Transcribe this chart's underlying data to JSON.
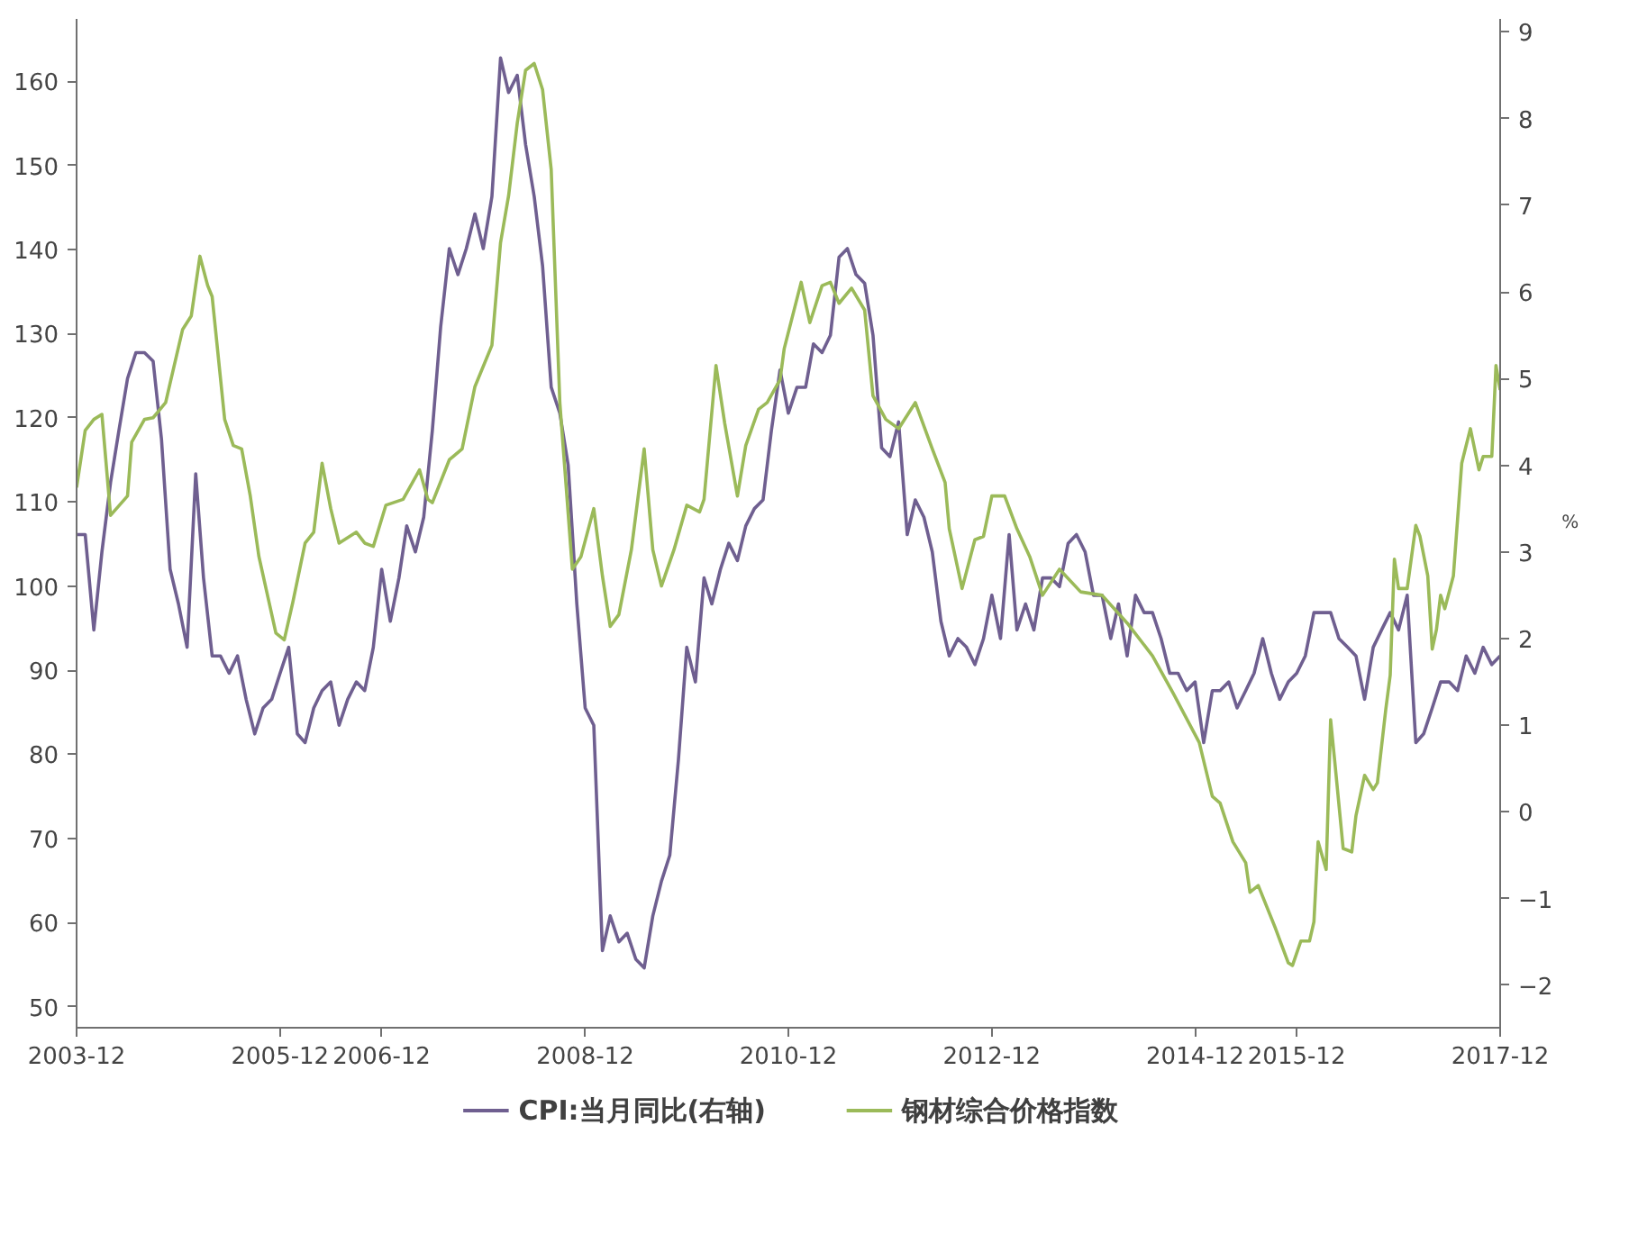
{
  "chart_data": {
    "type": "line",
    "xlim": [
      "2003-12",
      "2017-12"
    ],
    "xticks": [
      "2003-12",
      "2005-12",
      "2006-12",
      "2008-12",
      "2010-12",
      "2012-12",
      "2014-12",
      "2015-12",
      "2017-12"
    ],
    "ylim": [
      47.5,
      167.4
    ],
    "yticks": [
      50,
      60,
      70,
      80,
      90,
      100,
      110,
      120,
      130,
      140,
      150,
      160
    ],
    "y2lim": [
      -2.49,
      9.15
    ],
    "y2ticks": [
      -2,
      -1,
      0,
      1,
      2,
      3,
      4,
      5,
      6,
      7,
      8,
      9
    ],
    "y2label": "%",
    "grid": false,
    "legend": "bottom",
    "line_style": "solid",
    "marker": "none",
    "series": [
      {
        "name": "CPI:当月同比(右轴)",
        "color": "#6f5f90",
        "axis": "y2",
        "x": [
          "2003-12",
          "2004-01",
          "2004-02",
          "2004-03",
          "2004-04",
          "2004-05",
          "2004-06",
          "2004-07",
          "2004-08",
          "2004-09",
          "2004-10",
          "2004-11",
          "2004-12",
          "2005-01",
          "2005-02",
          "2005-03",
          "2005-04",
          "2005-05",
          "2005-06",
          "2005-07",
          "2005-08",
          "2005-09",
          "2005-10",
          "2005-11",
          "2005-12",
          "2006-01",
          "2006-02",
          "2006-03",
          "2006-04",
          "2006-05",
          "2006-06",
          "2006-07",
          "2006-08",
          "2006-09",
          "2006-10",
          "2006-11",
          "2006-12",
          "2007-01",
          "2007-02",
          "2007-03",
          "2007-04",
          "2007-05",
          "2007-06",
          "2007-07",
          "2007-08",
          "2007-09",
          "2007-10",
          "2007-11",
          "2007-12",
          "2008-01",
          "2008-02",
          "2008-03",
          "2008-04",
          "2008-05",
          "2008-06",
          "2008-07",
          "2008-08",
          "2008-09",
          "2008-10",
          "2008-11",
          "2008-12",
          "2009-01",
          "2009-02",
          "2009-03",
          "2009-04",
          "2009-05",
          "2009-06",
          "2009-07",
          "2009-08",
          "2009-09",
          "2009-10",
          "2009-11",
          "2009-12",
          "2010-01",
          "2010-02",
          "2010-03",
          "2010-04",
          "2010-05",
          "2010-06",
          "2010-07",
          "2010-08",
          "2010-09",
          "2010-10",
          "2010-11",
          "2010-12",
          "2011-01",
          "2011-02",
          "2011-03",
          "2011-04",
          "2011-05",
          "2011-06",
          "2011-07",
          "2011-08",
          "2011-09",
          "2011-10",
          "2011-11",
          "2011-12",
          "2012-01",
          "2012-02",
          "2012-03",
          "2012-04",
          "2012-05",
          "2012-06",
          "2012-07",
          "2012-08",
          "2012-09",
          "2012-10",
          "2012-11",
          "2012-12",
          "2013-01",
          "2013-02",
          "2013-03",
          "2013-04",
          "2013-05",
          "2013-06",
          "2013-07",
          "2013-08",
          "2013-09",
          "2013-10",
          "2013-11",
          "2013-12",
          "2014-01",
          "2014-02",
          "2014-03",
          "2014-04",
          "2014-05",
          "2014-06",
          "2014-07",
          "2014-08",
          "2014-09",
          "2014-10",
          "2014-11",
          "2014-12",
          "2015-01",
          "2015-02",
          "2015-03",
          "2015-04",
          "2015-05",
          "2015-06",
          "2015-07",
          "2015-08",
          "2015-09",
          "2015-10",
          "2015-11",
          "2015-12",
          "2016-01",
          "2016-02",
          "2016-03",
          "2016-04",
          "2016-05",
          "2016-06",
          "2016-07",
          "2016-08",
          "2016-09",
          "2016-10",
          "2016-11",
          "2016-12",
          "2017-01",
          "2017-02",
          "2017-03",
          "2017-04",
          "2017-05",
          "2017-06",
          "2017-07",
          "2017-08",
          "2017-09",
          "2017-10",
          "2017-11",
          "2017-12"
        ],
        "values": [
          3.2,
          3.2,
          2.1,
          3.0,
          3.8,
          4.4,
          5.0,
          5.3,
          5.3,
          5.2,
          4.3,
          2.8,
          2.4,
          1.9,
          3.9,
          2.7,
          1.8,
          1.8,
          1.6,
          1.8,
          1.3,
          0.9,
          1.2,
          1.3,
          1.6,
          1.9,
          0.9,
          0.8,
          1.2,
          1.4,
          1.5,
          1.0,
          1.3,
          1.5,
          1.4,
          1.9,
          2.8,
          2.2,
          2.7,
          3.3,
          3.0,
          3.4,
          4.4,
          5.6,
          6.5,
          6.2,
          6.5,
          6.9,
          6.5,
          7.1,
          8.7,
          8.3,
          8.5,
          7.7,
          7.1,
          6.3,
          4.9,
          4.6,
          4.0,
          2.4,
          1.2,
          1.0,
          -1.6,
          -1.2,
          -1.5,
          -1.4,
          -1.7,
          -1.8,
          -1.2,
          -0.8,
          -0.5,
          0.6,
          1.9,
          1.5,
          2.7,
          2.4,
          2.8,
          3.1,
          2.9,
          3.3,
          3.5,
          3.6,
          4.4,
          5.1,
          4.6,
          4.9,
          4.9,
          5.4,
          5.3,
          5.5,
          6.4,
          6.5,
          6.2,
          6.1,
          5.5,
          4.2,
          4.1,
          4.5,
          3.2,
          3.6,
          3.4,
          3.0,
          2.2,
          1.8,
          2.0,
          1.9,
          1.7,
          2.0,
          2.5,
          2.0,
          3.2,
          2.1,
          2.4,
          2.1,
          2.7,
          2.7,
          2.6,
          3.1,
          3.2,
          3.0,
          2.5,
          2.5,
          2.0,
          2.4,
          1.8,
          2.5,
          2.3,
          2.3,
          2.0,
          1.6,
          1.6,
          1.4,
          1.5,
          0.8,
          1.4,
          1.4,
          1.5,
          1.2,
          1.4,
          1.6,
          2.0,
          1.6,
          1.3,
          1.5,
          1.6,
          1.8,
          2.3,
          2.3,
          2.3,
          2.0,
          1.9,
          1.8,
          1.3,
          1.9,
          2.1,
          2.3,
          2.1,
          2.5,
          0.8,
          0.9,
          1.2,
          1.5,
          1.5,
          1.4,
          1.8,
          1.6,
          1.9,
          1.7,
          1.8
        ]
      },
      {
        "name": "钢材综合价格指数",
        "color": "#9bba59",
        "x": [
          "2003-12-01",
          "2004-01-01",
          "2004-02-01",
          "2004-03-01",
          "2004-04-01",
          "2004-06-01",
          "2004-06-16",
          "2004-08-01",
          "2004-09-01",
          "2004-10-16",
          "2004-11-01",
          "2004-12-16",
          "2005-01-16",
          "2005-02-16",
          "2005-03-16",
          "2005-04-01",
          "2005-05-16",
          "2005-06-16",
          "2005-07-16",
          "2005-08-16",
          "2005-09-16",
          "2005-11-16",
          "2005-12-16",
          "2006-01-16",
          "2006-03-01",
          "2006-04-01",
          "2006-05-01",
          "2006-06-01",
          "2006-07-01",
          "2006-09-01",
          "2006-10-01",
          "2006-11-01",
          "2006-12-16",
          "2007-02-16",
          "2007-04-16",
          "2007-05-16",
          "2007-06-01",
          "2007-08-01",
          "2007-09-16",
          "2007-11-01",
          "2008-01-01",
          "2008-02-01",
          "2008-03-01",
          "2008-04-01",
          "2008-05-01",
          "2008-06-01",
          "2008-07-01",
          "2008-08-01",
          "2008-09-01",
          "2008-10-16",
          "2008-11-16",
          "2009-01-01",
          "2009-02-01",
          "2009-03-01",
          "2009-04-01",
          "2009-05-16",
          "2009-07-01",
          "2009-08-01",
          "2009-09-01",
          "2009-10-16",
          "2009-12-01",
          "2010-01-16",
          "2010-02-01",
          "2010-03-16",
          "2010-04-16",
          "2010-06-01",
          "2010-07-01",
          "2010-08-16",
          "2010-09-16",
          "2010-11-01",
          "2010-11-16",
          "2011-01-16",
          "2011-02-16",
          "2011-04-01",
          "2011-05-01",
          "2011-06-01",
          "2011-07-16",
          "2011-09-01",
          "2011-10-01",
          "2011-11-16",
          "2012-01-01",
          "2012-03-01",
          "2012-05-01",
          "2012-06-16",
          "2012-07-01",
          "2012-08-16",
          "2012-10-01",
          "2012-11-01",
          "2012-12-01",
          "2013-01-16",
          "2013-03-01",
          "2013-04-16",
          "2013-06-01",
          "2013-08-01",
          "2013-10-16",
          "2014-01-01",
          "2014-04-01",
          "2014-07-01",
          "2014-09-16",
          "2014-12-16",
          "2015-02-01",
          "2015-03-01",
          "2015-04-16",
          "2015-06-01",
          "2015-06-16",
          "2015-07-16",
          "2015-09-16",
          "2015-11-01",
          "2015-11-16",
          "2015-12-16",
          "2016-01-16",
          "2016-02-01",
          "2016-02-16",
          "2016-03-16",
          "2016-04-01",
          "2016-04-16",
          "2016-05-16",
          "2016-06-16",
          "2016-07-01",
          "2016-08-01",
          "2016-09-01",
          "2016-09-16",
          "2016-10-16",
          "2016-11-01",
          "2016-11-16",
          "2016-12-01",
          "2017-01-01",
          "2017-02-01",
          "2017-02-16",
          "2017-03-16",
          "2017-04-01",
          "2017-04-16",
          "2017-05-01",
          "2017-05-16",
          "2017-06-16",
          "2017-07-16",
          "2017-08-16",
          "2017-09-16",
          "2017-10-01",
          "2017-11-01",
          "2017-11-16",
          "2017-12-01"
        ],
        "values": [
          111.7,
          118.5,
          119.8,
          120.4,
          108.4,
          110.7,
          117.1,
          119.8,
          120.0,
          121.8,
          124.1,
          130.5,
          132.1,
          139.2,
          135.7,
          134.4,
          119.8,
          116.7,
          116.3,
          110.7,
          103.5,
          94.4,
          93.6,
          98.1,
          105.1,
          106.4,
          114.6,
          109.2,
          105.1,
          106.4,
          105.1,
          104.7,
          109.6,
          110.3,
          113.8,
          110.3,
          109.9,
          115.0,
          116.3,
          123.7,
          128.6,
          140.8,
          146.4,
          155.0,
          161.3,
          162.1,
          159.0,
          149.5,
          121.8,
          102.0,
          103.5,
          109.2,
          101.2,
          95.2,
          96.6,
          104.3,
          116.3,
          104.3,
          100.0,
          104.3,
          109.6,
          108.8,
          110.3,
          126.2,
          119.4,
          110.7,
          116.7,
          121.0,
          121.8,
          124.5,
          128.2,
          136.1,
          131.3,
          135.7,
          136.1,
          133.6,
          135.4,
          132.8,
          122.6,
          119.8,
          118.7,
          121.8,
          116.3,
          112.3,
          106.8,
          99.7,
          105.5,
          105.9,
          110.7,
          110.7,
          106.8,
          103.5,
          98.9,
          102.0,
          99.3,
          98.9,
          95.6,
          91.7,
          87.1,
          81.4,
          75.0,
          74.2,
          69.6,
          67.1,
          63.6,
          64.4,
          59.3,
          55.2,
          54.9,
          57.8,
          57.8,
          60.1,
          69.6,
          66.3,
          84.1,
          79.1,
          68.8,
          68.4,
          72.7,
          77.5,
          75.8,
          76.6,
          85.3,
          89.4,
          103.2,
          99.7,
          99.7,
          107.2,
          105.9,
          101.2,
          92.5,
          94.8,
          98.9,
          97.3,
          101.2,
          114.6,
          118.7,
          113.8,
          115.4,
          115.4,
          126.2,
          123.3
        ]
      }
    ]
  }
}
